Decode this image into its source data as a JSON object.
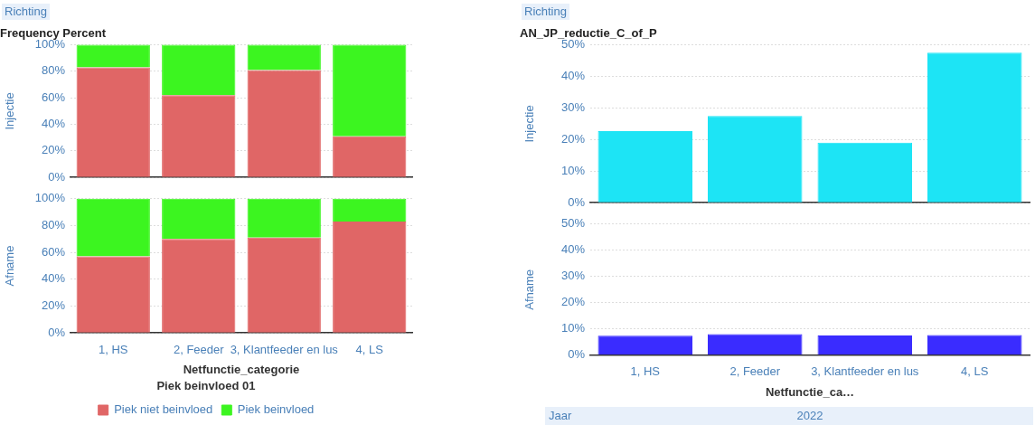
{
  "chart_data": [
    {
      "type": "bar",
      "stacked": true,
      "title": "Frequency Percent",
      "ylabel": "Injectie",
      "annotations": [
        "Richting"
      ],
      "categories": [
        null,
        null,
        null,
        null
      ],
      "series": [
        {
          "color": "#e06666",
          "values": [
            83,
            62,
            81,
            31
          ]
        },
        {
          "color": "#3cf520",
          "values": [
            17,
            38,
            19,
            69
          ]
        }
      ],
      "ylim": [
        0,
        100
      ],
      "yticks": [
        {
          "value": 0,
          "label": "0%"
        },
        {
          "value": 20,
          "label": "20%"
        },
        {
          "value": 40,
          "label": "40%"
        },
        {
          "value": 60,
          "label": "60%"
        },
        {
          "value": 80,
          "label": "80%"
        },
        {
          "value": 100,
          "label": "100%"
        }
      ],
      "grid": "y",
      "tick_labels": "y"
    },
    {
      "type": "bar",
      "stacked": true,
      "ylabel": "Afname",
      "xlabel": "Netfunctie_categorie",
      "legend_title": "Piek beinvloed 01",
      "legend": "bottom",
      "categories": [
        "1, HS",
        "2, Feeder",
        "3, Klantfeeder en lus",
        "4, LS"
      ],
      "series": [
        {
          "name": "Piek niet beinvloed",
          "color": "#e06666",
          "values": [
            57,
            70,
            71,
            83
          ]
        },
        {
          "name": "Piek beinvloed",
          "color": "#3cf520",
          "values": [
            43,
            30,
            29,
            17
          ]
        }
      ],
      "ylim": [
        0,
        100
      ],
      "yticks": [
        {
          "value": 0,
          "label": "0%"
        },
        {
          "value": 20,
          "label": "20%"
        },
        {
          "value": 40,
          "label": "40%"
        },
        {
          "value": 60,
          "label": "60%"
        },
        {
          "value": 80,
          "label": "80%"
        },
        {
          "value": 100,
          "label": "100%"
        }
      ],
      "grid": "y"
    },
    {
      "type": "bar",
      "title": "AN_JP_reductie_C_of_P",
      "ylabel": "Injectie",
      "annotations": [
        "Richting"
      ],
      "categories": [
        null,
        null,
        null,
        null
      ],
      "series": [
        {
          "color": "#1de4f5",
          "values": [
            22.7,
            27.5,
            19,
            47.5
          ]
        }
      ],
      "ylim": [
        0,
        50
      ],
      "yticks": [
        {
          "value": 0,
          "label": "0%"
        },
        {
          "value": 10,
          "label": "10%"
        },
        {
          "value": 20,
          "label": "20%"
        },
        {
          "value": 30,
          "label": "30%"
        },
        {
          "value": 40,
          "label": "40%"
        },
        {
          "value": 50,
          "label": "50%"
        }
      ],
      "grid": "y",
      "tick_labels": "y"
    },
    {
      "type": "bar",
      "ylabel": "Afname",
      "xlabel": "Netfunctie_ca…",
      "annotations": [
        "Jaar",
        "2022"
      ],
      "categories": [
        "1, HS",
        "2, Feeder",
        "3, Klantfeeder en lus",
        "4, LS"
      ],
      "series": [
        {
          "color": "#3a2cff",
          "values": [
            7.4,
            8,
            7.5,
            7.7
          ]
        }
      ],
      "ylim": [
        0,
        50
      ],
      "yticks": [
        {
          "value": 0,
          "label": "0%"
        },
        {
          "value": 10,
          "label": "10%"
        },
        {
          "value": 20,
          "label": "20%"
        },
        {
          "value": 30,
          "label": "30%"
        },
        {
          "value": 40,
          "label": "40%"
        },
        {
          "value": 50,
          "label": "50%"
        }
      ],
      "grid": "y"
    }
  ]
}
